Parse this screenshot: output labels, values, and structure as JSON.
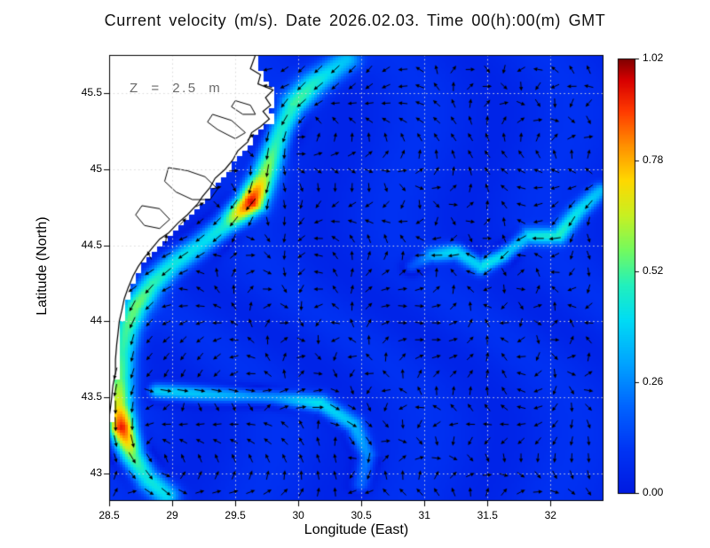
{
  "chart_data": {
    "type": "heatmap",
    "subtype": "ocean-current-vector-map",
    "title": "Current velocity (m/s). Date 2026.02.03. Time 00(h):00(m) GMT",
    "annotation": "Z = 2.5 m",
    "date": "2026.02.03",
    "time": "00(h):00(m) GMT",
    "depth_m": 2.5,
    "units": "m/s",
    "xlabel": "Longitude (East)",
    "ylabel": "Latitude (North)",
    "xlim": [
      28.5,
      32.42
    ],
    "ylim": [
      42.82,
      45.75
    ],
    "grid": true,
    "xtick_values": [
      28.5,
      29,
      29.5,
      30,
      30.5,
      31,
      31.5,
      32
    ],
    "xtick_labels": [
      "28.5",
      "29",
      "29.5",
      "30",
      "30.5",
      "31",
      "31.5",
      "32"
    ],
    "ytick_values": [
      43,
      43.5,
      44,
      44.5,
      45,
      45.5
    ],
    "ytick_labels": [
      "43",
      "43.5",
      "44",
      "44.5",
      "45",
      "45.5"
    ],
    "colorbar": {
      "min": 0,
      "max": 1.02,
      "tick_values": [
        0,
        0.26,
        0.52,
        0.78,
        1.02
      ],
      "tick_labels": [
        "0.00",
        "0.26",
        "0.52",
        "0.78",
        "1.02"
      ],
      "colormap_stops": [
        [
          0.0,
          "#001ae0"
        ],
        [
          0.1,
          "#0034f4"
        ],
        [
          0.2,
          "#0064ff"
        ],
        [
          0.3,
          "#00a4ff"
        ],
        [
          0.4,
          "#00dcf4"
        ],
        [
          0.48,
          "#22f0bc"
        ],
        [
          0.56,
          "#74fa5e"
        ],
        [
          0.64,
          "#c8f022"
        ],
        [
          0.72,
          "#ffd800"
        ],
        [
          0.8,
          "#ff9000"
        ],
        [
          0.88,
          "#ff3a00"
        ],
        [
          0.95,
          "#d80000"
        ],
        [
          1.0,
          "#7f0000"
        ]
      ]
    },
    "colors": {
      "land": "#ffffff",
      "coast": "#000000",
      "arrow": "#000000",
      "gridline": "#d9d9d9",
      "frame": "#000000"
    },
    "background_flow": {
      "speed_mean": 0.065,
      "speed_variation": 0.025
    },
    "quiver": {
      "grid_step_deg_lon": 0.134,
      "grid_step_deg_lat": 0.111
    },
    "jets": [
      {
        "name": "coastal-rim-current",
        "width": 0.085,
        "points": [
          [
            30.38,
            45.72
          ],
          [
            30.12,
            45.56
          ],
          [
            29.96,
            45.42
          ],
          [
            29.87,
            45.27
          ],
          [
            29.8,
            45.12
          ],
          [
            29.73,
            44.96
          ],
          [
            29.62,
            44.78
          ],
          [
            29.42,
            44.63
          ],
          [
            29.22,
            44.5
          ],
          [
            29.01,
            44.38
          ],
          [
            28.84,
            44.25
          ],
          [
            28.71,
            44.1
          ],
          [
            28.64,
            43.96
          ],
          [
            28.6,
            43.8
          ],
          [
            28.58,
            43.63
          ],
          [
            28.57,
            43.46
          ],
          [
            28.6,
            43.3
          ],
          [
            28.68,
            43.12
          ],
          [
            28.8,
            42.97
          ],
          [
            28.95,
            42.86
          ]
        ],
        "speeds": [
          0.32,
          0.42,
          0.5,
          0.55,
          0.58,
          0.62,
          0.98,
          0.55,
          0.45,
          0.45,
          0.5,
          0.55,
          0.52,
          0.48,
          0.52,
          0.68,
          1.0,
          0.66,
          0.48,
          0.4
        ]
      },
      {
        "name": "southern-filament",
        "width": 0.06,
        "points": [
          [
            28.88,
            43.54
          ],
          [
            29.3,
            43.52
          ],
          [
            29.8,
            43.5
          ],
          [
            30.18,
            43.46
          ],
          [
            30.44,
            43.32
          ],
          [
            30.55,
            43.12
          ],
          [
            30.5,
            42.93
          ]
        ],
        "speeds": [
          0.42,
          0.38,
          0.36,
          0.4,
          0.34,
          0.3,
          0.24
        ]
      },
      {
        "name": "eastern-meander",
        "width": 0.055,
        "points": [
          [
            32.4,
            44.86
          ],
          [
            32.22,
            44.72
          ],
          [
            32.06,
            44.56
          ],
          [
            31.82,
            44.56
          ],
          [
            31.62,
            44.43
          ],
          [
            31.45,
            44.36
          ],
          [
            31.26,
            44.46
          ],
          [
            31.05,
            44.43
          ],
          [
            30.9,
            44.36
          ]
        ],
        "speeds": [
          0.3,
          0.36,
          0.4,
          0.34,
          0.46,
          0.4,
          0.36,
          0.3,
          0.24
        ]
      }
    ],
    "coastline": [
      [
        29.66,
        45.75
      ],
      [
        29.62,
        45.66
      ],
      [
        29.7,
        45.62
      ],
      [
        29.68,
        45.56
      ],
      [
        29.8,
        45.52
      ],
      [
        29.74,
        45.47
      ],
      [
        29.78,
        45.42
      ],
      [
        29.72,
        45.38
      ],
      [
        29.77,
        45.33
      ],
      [
        29.7,
        45.28
      ],
      [
        29.63,
        45.24
      ],
      [
        29.6,
        45.18
      ],
      [
        29.52,
        45.12
      ],
      [
        29.48,
        45.06
      ],
      [
        29.42,
        45.0
      ],
      [
        29.34,
        44.94
      ],
      [
        29.3,
        44.88
      ],
      [
        29.24,
        44.82
      ],
      [
        29.2,
        44.77
      ],
      [
        29.12,
        44.7
      ],
      [
        29.05,
        44.65
      ],
      [
        28.97,
        44.58
      ],
      [
        28.9,
        44.54
      ],
      [
        28.83,
        44.47
      ],
      [
        28.78,
        44.42
      ],
      [
        28.73,
        44.36
      ],
      [
        28.69,
        44.3
      ],
      [
        28.65,
        44.22
      ],
      [
        28.62,
        44.15
      ],
      [
        28.6,
        44.07
      ],
      [
        28.58,
        44.0
      ],
      [
        28.57,
        43.92
      ],
      [
        28.56,
        43.85
      ],
      [
        28.55,
        43.75
      ],
      [
        28.55,
        43.66
      ],
      [
        28.53,
        43.58
      ],
      [
        28.52,
        43.5
      ],
      [
        28.51,
        43.43
      ],
      [
        28.5,
        43.37
      ]
    ],
    "lakes": [
      [
        [
          28.97,
          45.01
        ],
        [
          29.12,
          44.99
        ],
        [
          29.26,
          44.95
        ],
        [
          29.36,
          44.87
        ],
        [
          29.3,
          44.8
        ],
        [
          29.16,
          44.8
        ],
        [
          29.03,
          44.85
        ],
        [
          28.94,
          44.92
        ]
      ],
      [
        [
          28.76,
          44.76
        ],
        [
          28.9,
          44.74
        ],
        [
          28.98,
          44.67
        ],
        [
          28.9,
          44.61
        ],
        [
          28.78,
          44.63
        ],
        [
          28.71,
          44.7
        ]
      ],
      [
        [
          29.32,
          45.36
        ],
        [
          29.47,
          45.32
        ],
        [
          29.58,
          45.24
        ],
        [
          29.5,
          45.2
        ],
        [
          29.36,
          45.26
        ],
        [
          29.28,
          45.31
        ]
      ],
      [
        [
          29.5,
          45.45
        ],
        [
          29.62,
          45.42
        ],
        [
          29.66,
          45.36
        ],
        [
          29.56,
          45.36
        ],
        [
          29.47,
          45.41
        ]
      ]
    ]
  }
}
